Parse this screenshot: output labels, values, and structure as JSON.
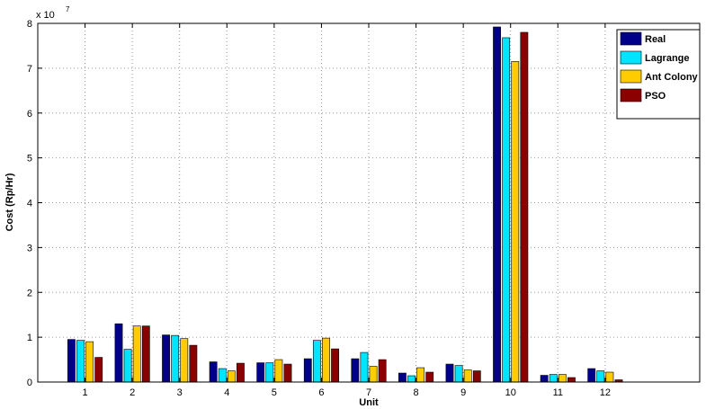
{
  "chart_data": {
    "type": "bar",
    "xlabel": "Unit",
    "ylabel": "Cost (Rp/Hr)",
    "y_multiplier_label": "x 10",
    "y_multiplier_exponent": "7",
    "ylim": [
      0,
      8
    ],
    "xlim": [
      0,
      14
    ],
    "grid": true,
    "legend_position": "top-right",
    "categories": [
      "1",
      "2",
      "3",
      "4",
      "5",
      "6",
      "7",
      "8",
      "9",
      "10",
      "11",
      "12"
    ],
    "y_ticks": [
      "0",
      "1",
      "2",
      "3",
      "4",
      "5",
      "6",
      "7",
      "8"
    ],
    "series": [
      {
        "name": "Real",
        "color": "#00008b",
        "values": [
          0.95,
          1.3,
          1.05,
          0.45,
          0.43,
          0.52,
          0.52,
          0.2,
          0.4,
          7.92,
          0.15,
          0.3
        ]
      },
      {
        "name": "Lagrange",
        "color": "#00e5ff",
        "values": [
          0.93,
          0.73,
          1.04,
          0.3,
          0.43,
          0.93,
          0.66,
          0.14,
          0.37,
          7.68,
          0.17,
          0.25
        ]
      },
      {
        "name": "Ant Colony",
        "color": "#ffcc00",
        "values": [
          0.9,
          1.25,
          0.97,
          0.25,
          0.5,
          0.98,
          0.35,
          0.32,
          0.27,
          7.15,
          0.17,
          0.22
        ]
      },
      {
        "name": "PSO",
        "color": "#8b0000",
        "values": [
          0.55,
          1.25,
          0.82,
          0.42,
          0.4,
          0.74,
          0.5,
          0.22,
          0.25,
          7.8,
          0.1,
          0.05
        ]
      }
    ]
  }
}
